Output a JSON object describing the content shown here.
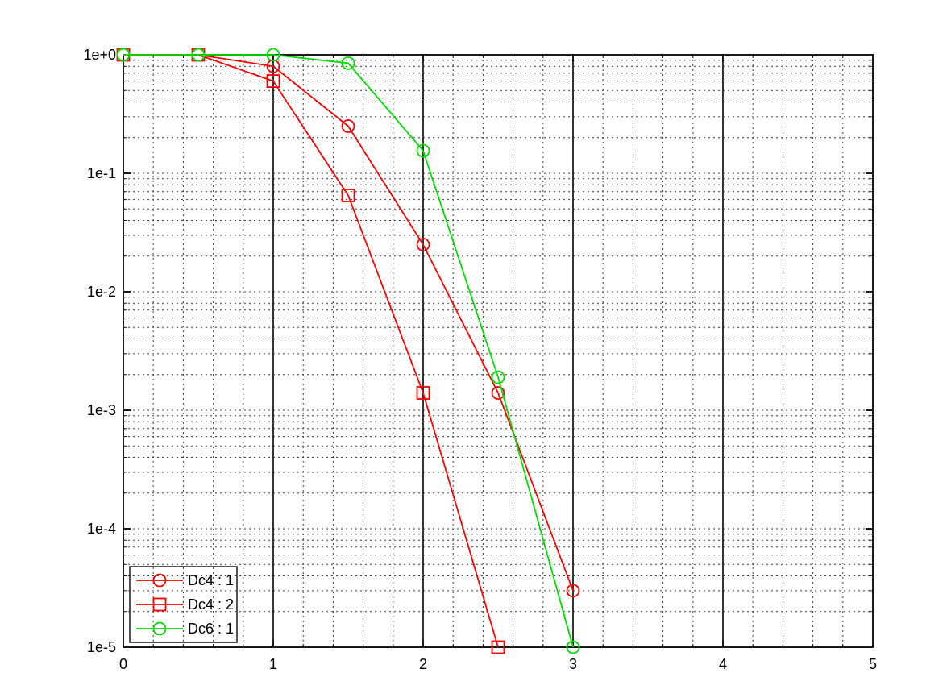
{
  "chart_data": {
    "type": "line",
    "title": "",
    "xlabel": "",
    "ylabel": "",
    "x": [
      0,
      0.5,
      1,
      1.5,
      2,
      2.5,
      3
    ],
    "series": [
      {
        "name": "Dc4 : 1",
        "color": "#ff0000",
        "marker": "circle",
        "values": [
          1.0,
          1.0,
          0.8,
          0.25,
          0.025,
          0.0014,
          3e-05
        ]
      },
      {
        "name": "Dc4 : 2",
        "color": "#ff0000",
        "marker": "square",
        "values": [
          1.0,
          1.0,
          0.6,
          0.065,
          0.0014,
          1e-05
        ]
      },
      {
        "name": "Dc6 : 1",
        "color": "#00dd00",
        "marker": "circle",
        "values": [
          1.0,
          1.0,
          1.0,
          0.85,
          0.155,
          0.0019,
          1e-05
        ]
      }
    ],
    "x_axis": {
      "min": 0,
      "max": 5,
      "major_ticks": [
        0,
        1,
        2,
        3,
        4,
        5
      ],
      "tick_labels": [
        "0",
        "1",
        "2",
        "3",
        "4",
        "5"
      ],
      "minor_step": 0.2
    },
    "y_axis": {
      "scale": "log",
      "min": 1e-05,
      "max": 1,
      "tick_labels": [
        "1e+0",
        "1e-1",
        "1e-2",
        "1e-3",
        "1e-4",
        "1e-5"
      ]
    },
    "grid": {
      "minor_style": "dashed",
      "vertical_major_style": "solid",
      "grid_color": "#3c3c3c",
      "frame_color": "#1a1a1a"
    },
    "legend": {
      "position": "bottom-left",
      "entries": [
        "Dc4 : 1",
        "Dc4 : 2",
        "Dc6 : 1"
      ]
    },
    "background_color": "#ffffff"
  }
}
